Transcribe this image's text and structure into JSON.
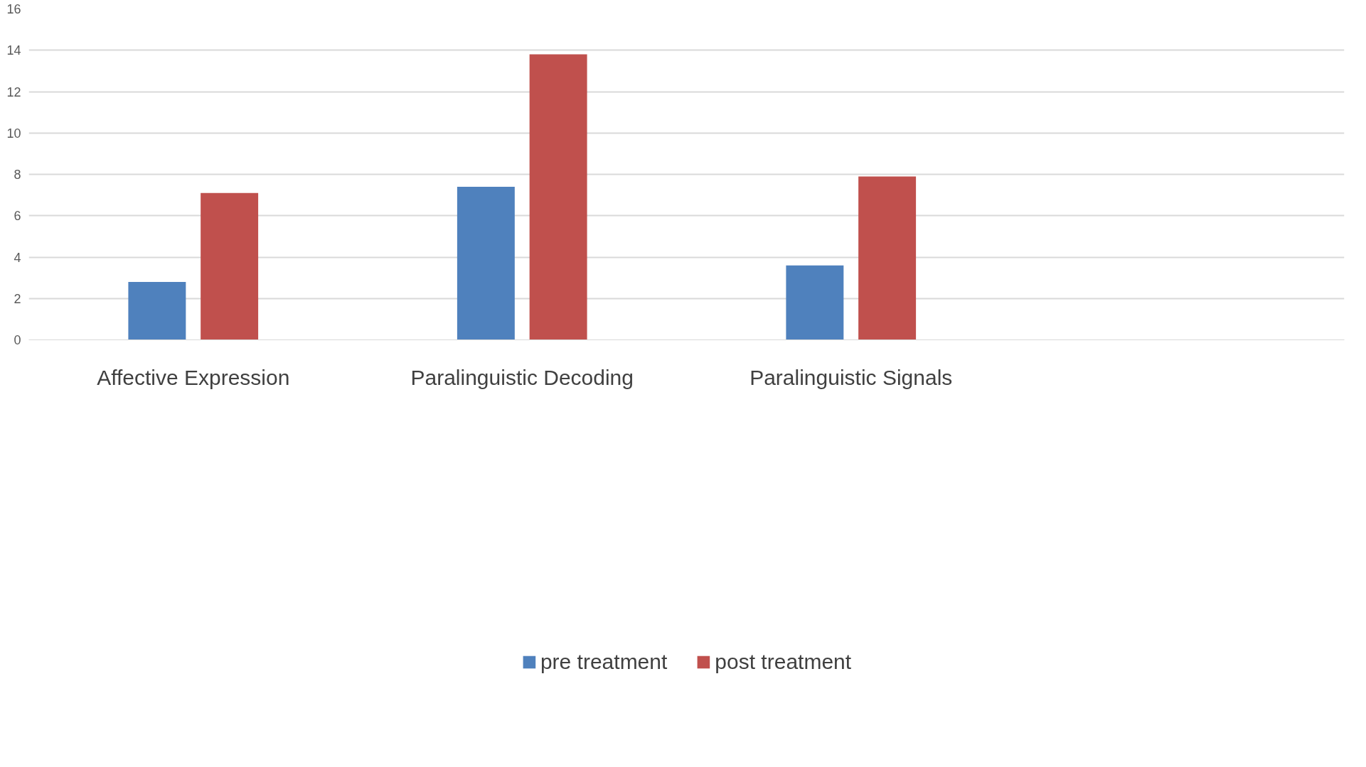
{
  "chart_data": {
    "type": "bar",
    "categories": [
      "Affective Expression",
      "Paralinguistic Decoding",
      "Paralinguistic Signals",
      null
    ],
    "series": [
      {
        "name": "pre treatment",
        "color": "#4f81bd",
        "values": [
          2.8,
          7.4,
          3.6,
          null
        ]
      },
      {
        "name": "post treatment",
        "color": "#c0504d",
        "values": [
          7.1,
          13.8,
          7.9,
          null
        ]
      }
    ],
    "ylim": [
      0,
      16
    ],
    "yticks": [
      0,
      2,
      4,
      6,
      8,
      10,
      12,
      14,
      16
    ],
    "grid": "y",
    "legend": "bottom"
  }
}
